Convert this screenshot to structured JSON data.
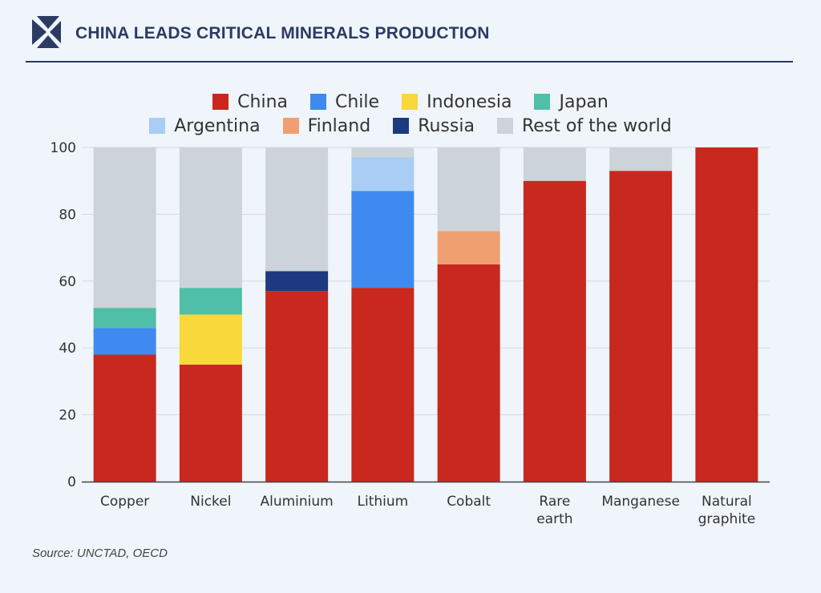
{
  "header": {
    "title": "CHINA LEADS CRITICAL MINERALS PRODUCTION",
    "logo_icon": "triangular-chevron-logo-icon"
  },
  "source": "Source: UNCTAD, OECD",
  "colors": {
    "China": "#c8281e",
    "Chile": "#3f8af0",
    "Indonesia": "#f8d83a",
    "Japan": "#4fbfa8",
    "Argentina": "#a9cdf5",
    "Finland": "#f0a070",
    "Russia": "#1d3a80",
    "Rest of the world": "#ccd3d9"
  },
  "legend": {
    "rows": [
      [
        "China",
        "Chile",
        "Indonesia",
        "Japan"
      ],
      [
        "Argentina",
        "Finland",
        "Russia",
        "Rest of the world"
      ]
    ]
  },
  "chart_data": {
    "type": "bar",
    "stacked": true,
    "title": "",
    "xlabel": "",
    "ylabel": "",
    "ylim": [
      0,
      100
    ],
    "yticks": [
      "0",
      "20",
      "40",
      "60",
      "80",
      "100"
    ],
    "grid": true,
    "legend_position": "top",
    "categories": [
      "Copper",
      "Nickel",
      "Aluminium",
      "Lithium",
      "Cobalt",
      "Rare earth",
      "Manganese",
      "Natural graphite"
    ],
    "category_lines": [
      [
        "Copper"
      ],
      [
        "Nickel"
      ],
      [
        "Aluminium"
      ],
      [
        "Lithium"
      ],
      [
        "Cobalt"
      ],
      [
        "Rare",
        "earth"
      ],
      [
        "Manganese"
      ],
      [
        "Natural",
        "graphite"
      ]
    ],
    "series": [
      {
        "name": "China",
        "values": [
          38,
          35,
          57,
          58,
          65,
          90,
          93,
          100
        ]
      },
      {
        "name": "Chile",
        "values": [
          8,
          0,
          0,
          29,
          0,
          0,
          0,
          0
        ]
      },
      {
        "name": "Indonesia",
        "values": [
          0,
          15,
          0,
          0,
          0,
          0,
          0,
          0
        ]
      },
      {
        "name": "Japan",
        "values": [
          6,
          8,
          0,
          0,
          0,
          0,
          0,
          0
        ]
      },
      {
        "name": "Argentina",
        "values": [
          0,
          0,
          0,
          10,
          0,
          0,
          0,
          0
        ]
      },
      {
        "name": "Finland",
        "values": [
          0,
          0,
          0,
          0,
          10,
          0,
          0,
          0
        ]
      },
      {
        "name": "Russia",
        "values": [
          0,
          0,
          6,
          0,
          0,
          0,
          0,
          0
        ]
      },
      {
        "name": "Rest of the world",
        "values": [
          48,
          42,
          37,
          3,
          25,
          10,
          7,
          0
        ]
      }
    ]
  }
}
